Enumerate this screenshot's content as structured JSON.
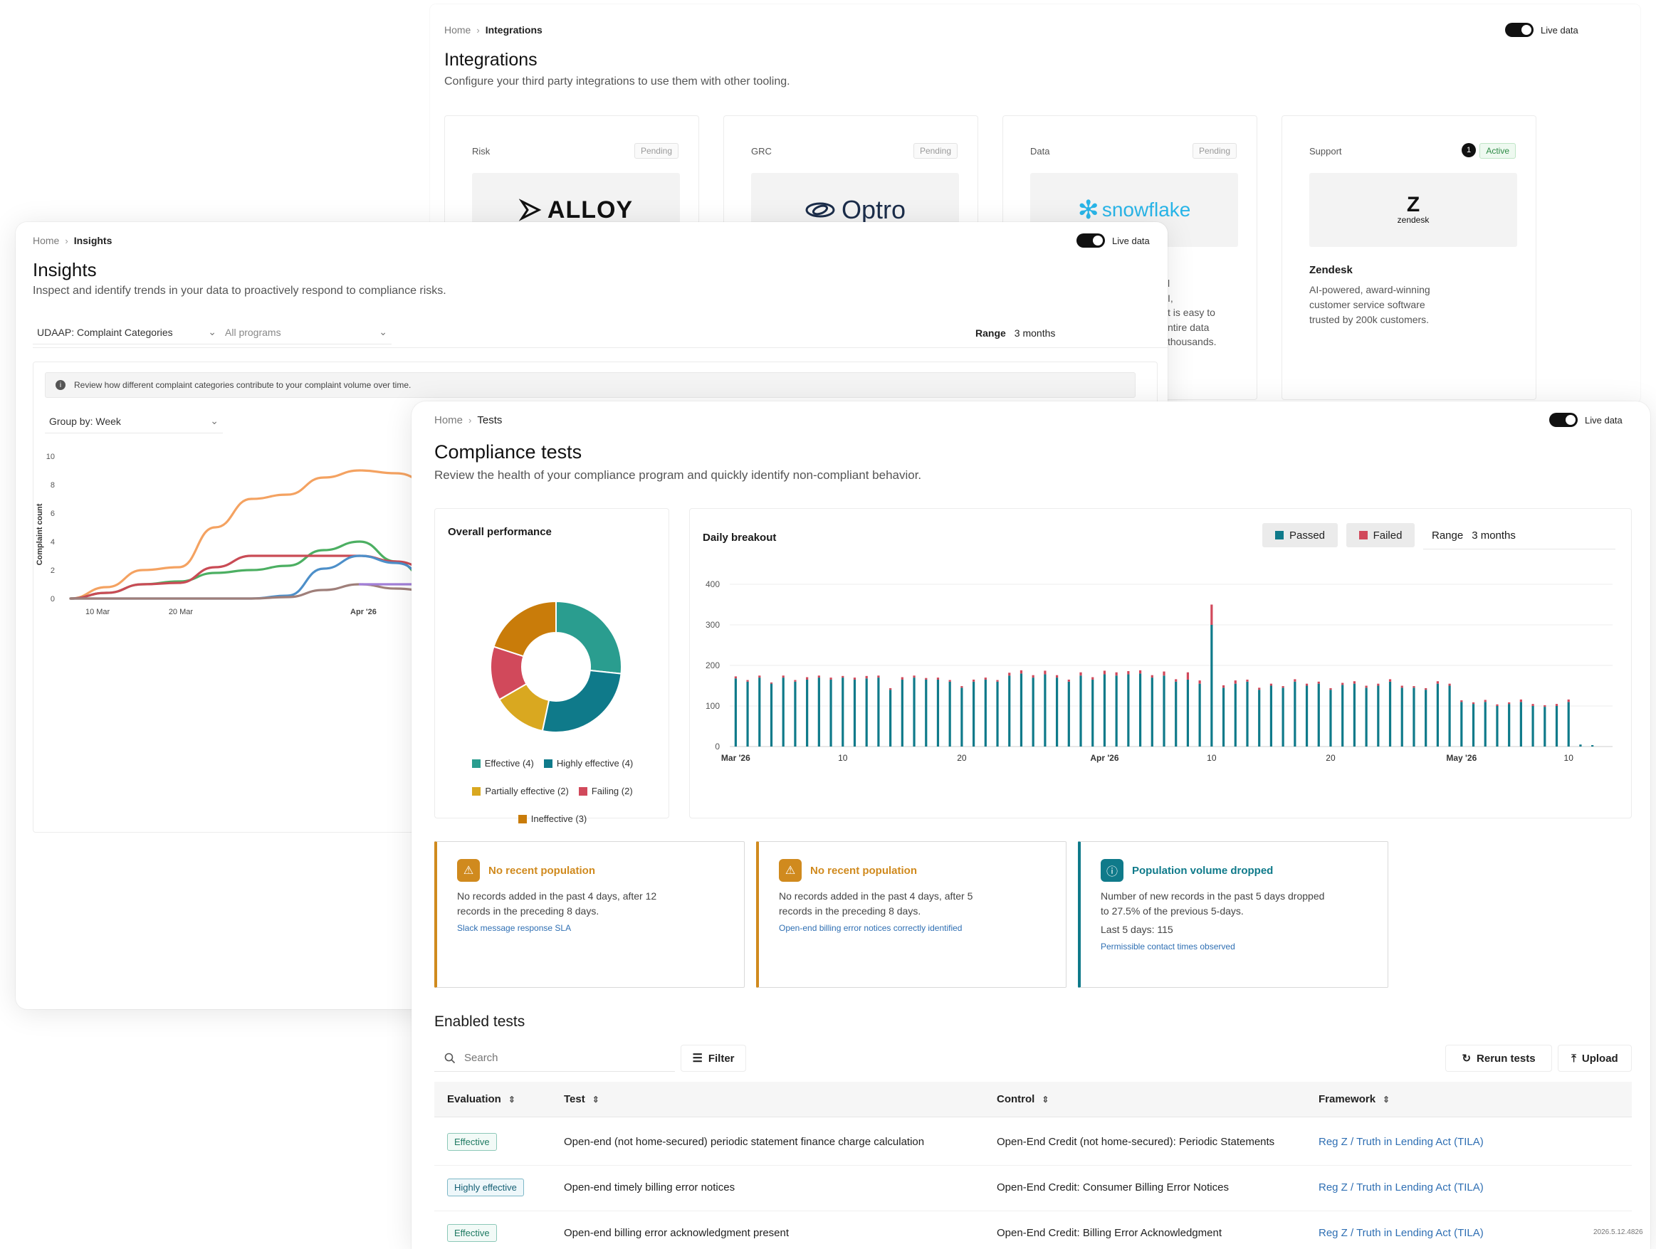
{
  "integrations": {
    "breadcrumb": {
      "home": "Home",
      "current": "Integrations"
    },
    "live_label": "Live data",
    "title": "Integrations",
    "subtitle": "Configure your third party integrations to use them with other tooling.",
    "cards": [
      {
        "category": "Risk",
        "status": "Pending",
        "logo": "ALLOY"
      },
      {
        "category": "GRC",
        "status": "Pending",
        "logo": "Optro"
      },
      {
        "category": "Data",
        "status": "Pending",
        "logo": "snowflake"
      },
      {
        "category": "Support",
        "status": "Active",
        "count": "1",
        "logo": "zendesk",
        "name": "Zendesk",
        "desc1": "AI-powered, award-winning",
        "desc2": "customer service software",
        "desc3": "trusted by 200k customers."
      }
    ],
    "snow_frag": [
      "l",
      "I,",
      "t is easy to",
      "ntire data",
      "thousands."
    ]
  },
  "insights": {
    "breadcrumb": {
      "home": "Home",
      "current": "Insights"
    },
    "live_label": "Live data",
    "title": "Insights",
    "subtitle": "Inspect and identify trends in your data to proactively respond to compliance risks.",
    "category_select": "UDAAP: Complaint Categories",
    "program_select": "All programs",
    "range_label": "Range",
    "range_value": "3 months",
    "info": "Review how different complaint categories contribute to your complaint volume over time.",
    "group_by": "Group by: Week",
    "chart_data": {
      "type": "line",
      "ylabel": "Complaint count",
      "ylim": [
        0,
        12
      ],
      "yticks": [
        "0",
        "2",
        "4",
        "6",
        "8",
        "10",
        "12"
      ],
      "xticks": [
        "10 Mar",
        "20 Mar",
        "Apr '26"
      ],
      "series": [
        {
          "color": "#f4a261",
          "values": [
            0,
            0.8,
            2,
            2.2,
            5,
            7,
            7.3,
            8.5,
            9,
            8.8,
            8.1
          ]
        },
        {
          "color": "#4caf62",
          "values": [
            0,
            0.4,
            1,
            1.2,
            1.8,
            2,
            2.3,
            3.4,
            4,
            2.6,
            1
          ]
        },
        {
          "color": "#c94b55",
          "values": [
            0,
            0.4,
            1,
            1.1,
            2.2,
            3,
            3,
            3,
            3,
            2.6,
            2
          ]
        },
        {
          "color": "#4d8fc9",
          "values": [
            0,
            0,
            0,
            0,
            0,
            0,
            0.2,
            2.1,
            3,
            2.5,
            1.4
          ]
        },
        {
          "color": "#9f7f7a",
          "values": [
            0,
            0,
            0,
            0,
            0,
            0,
            0.1,
            0.6,
            1,
            0.7,
            0.5
          ]
        },
        {
          "color": "#a27fd8",
          "values": [
            null,
            null,
            null,
            null,
            null,
            null,
            null,
            null,
            1,
            1,
            1
          ]
        }
      ]
    }
  },
  "tests": {
    "breadcrumb": {
      "home": "Home",
      "current": "Tests"
    },
    "live_label": "Live data",
    "title": "Compliance tests",
    "subtitle": "Review the health of your compliance program and quickly identify non-compliant behavior.",
    "overall_title": "Overall performance",
    "donut_data": {
      "type": "pie",
      "slices": [
        {
          "label": "Effective (4)",
          "value": 4,
          "color": "#2a9d8f"
        },
        {
          "label": "Highly effective (4)",
          "value": 4,
          "color": "#0f7a8a"
        },
        {
          "label": "Partially effective (2)",
          "value": 2,
          "color": "#d9a820"
        },
        {
          "label": "Failing (2)",
          "value": 2,
          "color": "#d1495b"
        },
        {
          "label": "Ineffective (3)",
          "value": 3,
          "color": "#c97c0a"
        }
      ]
    },
    "daily_title": "Daily breakout",
    "passed_label": "Passed",
    "failed_label": "Failed",
    "range_label": "Range",
    "range_value": "3 months",
    "bar_data": {
      "type": "bar",
      "ylim": [
        0,
        400
      ],
      "yticks": [
        "0",
        "100",
        "200",
        "300",
        "400"
      ],
      "xticks": [
        {
          "label": "Mar '26",
          "index": 0,
          "bold": true
        },
        {
          "label": "10",
          "index": 9
        },
        {
          "label": "20",
          "index": 19
        },
        {
          "label": "Apr '26",
          "index": 31,
          "bold": true
        },
        {
          "label": "10",
          "index": 40
        },
        {
          "label": "20",
          "index": 50
        },
        {
          "label": "May '26",
          "index": 61,
          "bold": true
        },
        {
          "label": "10",
          "index": 70
        }
      ],
      "passed": [
        168,
        160,
        170,
        155,
        170,
        160,
        165,
        170,
        165,
        170,
        165,
        168,
        170,
        140,
        165,
        170,
        165,
        165,
        160,
        145,
        160,
        165,
        160,
        175,
        180,
        170,
        178,
        170,
        160,
        175,
        165,
        178,
        175,
        178,
        180,
        170,
        175,
        160,
        165,
        155,
        300,
        145,
        155,
        160,
        140,
        150,
        145,
        160,
        150,
        155,
        140,
        152,
        155,
        145,
        150,
        160,
        145,
        145,
        140,
        155,
        150,
        110,
        105,
        110,
        100,
        105,
        110,
        100,
        98,
        100,
        110,
        5,
        0
      ],
      "failed": [
        5,
        4,
        5,
        3,
        5,
        4,
        6,
        5,
        5,
        4,
        5,
        6,
        5,
        4,
        6,
        5,
        4,
        5,
        4,
        4,
        5,
        5,
        4,
        7,
        8,
        6,
        9,
        6,
        5,
        8,
        6,
        9,
        8,
        8,
        8,
        6,
        10,
        6,
        18,
        8,
        50,
        6,
        8,
        5,
        5,
        5,
        4,
        6,
        5,
        5,
        4,
        5,
        6,
        5,
        5,
        6,
        5,
        4,
        4,
        6,
        5,
        4,
        4,
        5,
        4,
        4,
        6,
        5,
        4,
        5,
        6,
        0,
        0
      ]
    },
    "alerts": [
      {
        "title": "No recent population",
        "line1": "No records added in the past 4 days, after 12",
        "line2": "records in the preceding 8 days.",
        "line3": "",
        "link": "Slack message response SLA",
        "type": "warn"
      },
      {
        "title": "No recent population",
        "line1": "No records added in the past 4 days, after 5",
        "line2": "records in the preceding 8 days.",
        "line3": "",
        "link": "Open-end billing error notices correctly identified",
        "type": "warn"
      },
      {
        "title": "Population volume dropped",
        "line1": "Number of new records in the past 5 days dropped",
        "line2": "to 27.5% of the previous 5-days.",
        "line3": "Last 5 days: 115",
        "link": "Permissible contact times observed",
        "type": "info"
      }
    ],
    "enabled_title": "Enabled tests",
    "search_placeholder": "Search",
    "filter_label": "Filter",
    "rerun_label": "Rerun tests",
    "upload_label": "Upload",
    "columns": [
      "Evaluation",
      "Test",
      "Control",
      "Framework"
    ],
    "rows": [
      {
        "evaluation": "Effective",
        "test": "Open-end (not home-secured) periodic statement finance charge calculation",
        "control": "Open-End Credit (not home-secured): Periodic Statements",
        "framework": "Reg Z / Truth in Lending Act (TILA)"
      },
      {
        "evaluation": "Highly effective",
        "test": "Open-end timely billing error notices",
        "control": "Open-End Credit: Consumer Billing Error Notices",
        "framework": "Reg Z / Truth in Lending Act (TILA)"
      },
      {
        "evaluation": "Effective",
        "test": "Open-end billing error acknowledgment present",
        "control": "Open-End Credit: Billing Error Acknowledgment",
        "framework": "Reg Z / Truth in Lending Act (TILA)"
      }
    ]
  },
  "version": "2026.5.12.4826"
}
